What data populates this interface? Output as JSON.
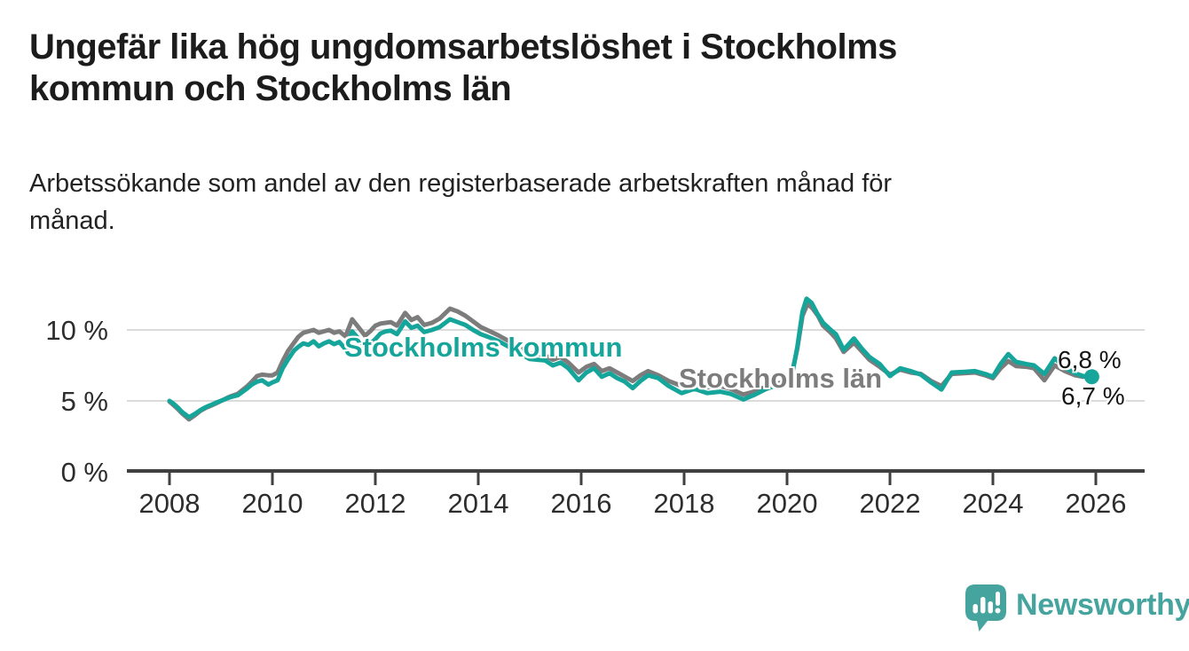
{
  "header": {
    "title_lines": [
      "Ungefär lika hög ungdomsarbetslöshet i Stockholms",
      "kommun och Stockholms län"
    ],
    "subtitle_lines": [
      "Arbetssökande som andel av den registerbaserade arbetskraften månad för",
      "månad."
    ]
  },
  "footer": {
    "brand": "Newsworthy",
    "brand_color": "#45a49d",
    "logo_icon": "speech-bubble-bar-chart-icon"
  },
  "chart_data": {
    "type": "line",
    "title": "Ungefär lika hög ungdomsarbetslöshet i Stockholms kommun och Stockholms län",
    "subtitle": "Arbetssökande som andel av den registerbaserade arbetskraften månad för månad.",
    "xlabel": "",
    "ylabel": "",
    "grid": "horizontal-only",
    "legend_position": "inline-labels",
    "y_axis": {
      "range": [
        0,
        13
      ],
      "ticks": [
        {
          "value": 0,
          "label": "0 %"
        },
        {
          "value": 5,
          "label": "5 %"
        },
        {
          "value": 10,
          "label": "10 %"
        }
      ]
    },
    "x_axis": {
      "range": [
        2007.2,
        2026.9
      ],
      "ticks": [
        {
          "value": 2008,
          "label": "2008"
        },
        {
          "value": 2010,
          "label": "2010"
        },
        {
          "value": 2012,
          "label": "2012"
        },
        {
          "value": 2014,
          "label": "2014"
        },
        {
          "value": 2016,
          "label": "2016"
        },
        {
          "value": 2018,
          "label": "2018"
        },
        {
          "value": 2020,
          "label": "2020"
        },
        {
          "value": 2022,
          "label": "2022"
        },
        {
          "value": 2024,
          "label": "2024"
        },
        {
          "value": 2026,
          "label": "2026"
        }
      ]
    },
    "series": [
      {
        "name": "Stockholms län",
        "color": "#7c7c7c",
        "end_label": "6,8 %",
        "end_value": 6.8,
        "end_dot": false,
        "points": [
          [
            2008.0,
            4.95
          ],
          [
            2008.08,
            4.7
          ],
          [
            2008.17,
            4.4
          ],
          [
            2008.25,
            4.1
          ],
          [
            2008.38,
            3.7
          ],
          [
            2008.5,
            4.0
          ],
          [
            2008.6,
            4.3
          ],
          [
            2008.7,
            4.5
          ],
          [
            2008.83,
            4.7
          ],
          [
            2008.92,
            4.85
          ],
          [
            2009.0,
            5.0
          ],
          [
            2009.17,
            5.3
          ],
          [
            2009.33,
            5.5
          ],
          [
            2009.5,
            6.0
          ],
          [
            2009.6,
            6.35
          ],
          [
            2009.7,
            6.75
          ],
          [
            2009.8,
            6.85
          ],
          [
            2009.92,
            6.8
          ],
          [
            2010.0,
            6.8
          ],
          [
            2010.1,
            7.0
          ],
          [
            2010.2,
            7.8
          ],
          [
            2010.3,
            8.5
          ],
          [
            2010.42,
            9.1
          ],
          [
            2010.5,
            9.5
          ],
          [
            2010.6,
            9.8
          ],
          [
            2010.7,
            9.9
          ],
          [
            2010.8,
            10.0
          ],
          [
            2010.9,
            9.8
          ],
          [
            2011.0,
            9.9
          ],
          [
            2011.1,
            10.0
          ],
          [
            2011.2,
            9.8
          ],
          [
            2011.3,
            9.9
          ],
          [
            2011.42,
            9.55
          ],
          [
            2011.55,
            10.75
          ],
          [
            2011.67,
            10.2
          ],
          [
            2011.8,
            9.6
          ],
          [
            2011.9,
            9.9
          ],
          [
            2012.0,
            10.3
          ],
          [
            2012.1,
            10.45
          ],
          [
            2012.2,
            10.5
          ],
          [
            2012.3,
            10.55
          ],
          [
            2012.42,
            10.3
          ],
          [
            2012.58,
            11.2
          ],
          [
            2012.7,
            10.7
          ],
          [
            2012.82,
            10.9
          ],
          [
            2012.95,
            10.35
          ],
          [
            2013.1,
            10.5
          ],
          [
            2013.25,
            10.8
          ],
          [
            2013.45,
            11.5
          ],
          [
            2013.6,
            11.3
          ],
          [
            2013.75,
            11.0
          ],
          [
            2013.9,
            10.6
          ],
          [
            2014.05,
            10.2
          ],
          [
            2014.2,
            9.95
          ],
          [
            2014.4,
            9.6
          ],
          [
            2014.6,
            9.2
          ],
          [
            2014.8,
            8.75
          ],
          [
            2015.0,
            8.35
          ],
          [
            2015.15,
            8.3
          ],
          [
            2015.3,
            8.2
          ],
          [
            2015.45,
            7.9
          ],
          [
            2015.6,
            8.1
          ],
          [
            2015.75,
            7.7
          ],
          [
            2015.95,
            7.0
          ],
          [
            2016.1,
            7.4
          ],
          [
            2016.25,
            7.6
          ],
          [
            2016.4,
            7.1
          ],
          [
            2016.55,
            7.3
          ],
          [
            2016.7,
            7.0
          ],
          [
            2016.85,
            6.7
          ],
          [
            2017.0,
            6.4
          ],
          [
            2017.15,
            6.8
          ],
          [
            2017.3,
            7.1
          ],
          [
            2017.5,
            6.8
          ],
          [
            2017.7,
            6.4
          ],
          [
            2017.95,
            6.05
          ],
          [
            2018.2,
            6.2
          ],
          [
            2018.45,
            5.95
          ],
          [
            2018.7,
            6.05
          ],
          [
            2018.9,
            5.85
          ],
          [
            2019.15,
            5.45
          ],
          [
            2019.35,
            5.65
          ],
          [
            2019.6,
            6.0
          ],
          [
            2019.8,
            6.2
          ],
          [
            2020.0,
            6.4
          ],
          [
            2020.1,
            7.0
          ],
          [
            2020.2,
            8.7
          ],
          [
            2020.3,
            11.0
          ],
          [
            2020.4,
            11.85
          ],
          [
            2020.5,
            11.5
          ],
          [
            2020.6,
            11.0
          ],
          [
            2020.7,
            10.3
          ],
          [
            2020.85,
            9.8
          ],
          [
            2020.95,
            9.4
          ],
          [
            2021.1,
            8.45
          ],
          [
            2021.3,
            9.1
          ],
          [
            2021.45,
            8.5
          ],
          [
            2021.6,
            7.9
          ],
          [
            2021.8,
            7.4
          ],
          [
            2022.0,
            6.85
          ],
          [
            2022.2,
            7.2
          ],
          [
            2022.4,
            7.0
          ],
          [
            2022.6,
            6.9
          ],
          [
            2022.8,
            6.4
          ],
          [
            2023.0,
            6.05
          ],
          [
            2023.2,
            6.9
          ],
          [
            2023.45,
            6.95
          ],
          [
            2023.65,
            7.0
          ],
          [
            2023.85,
            6.8
          ],
          [
            2024.0,
            6.6
          ],
          [
            2024.15,
            7.3
          ],
          [
            2024.3,
            7.8
          ],
          [
            2024.45,
            7.45
          ],
          [
            2024.65,
            7.4
          ],
          [
            2024.8,
            7.3
          ],
          [
            2025.0,
            6.45
          ],
          [
            2025.2,
            7.5
          ],
          [
            2025.4,
            7.1
          ],
          [
            2025.6,
            6.8
          ],
          [
            2025.75,
            6.7
          ],
          [
            2025.92,
            6.8
          ]
        ]
      },
      {
        "name": "Stockholms kommun",
        "color": "#16a59a",
        "end_label": "6,7 %",
        "end_value": 6.7,
        "end_dot": true,
        "points": [
          [
            2008.0,
            5.0
          ],
          [
            2008.08,
            4.8
          ],
          [
            2008.17,
            4.5
          ],
          [
            2008.25,
            4.2
          ],
          [
            2008.38,
            3.85
          ],
          [
            2008.5,
            4.1
          ],
          [
            2008.6,
            4.35
          ],
          [
            2008.7,
            4.55
          ],
          [
            2008.83,
            4.75
          ],
          [
            2008.92,
            4.9
          ],
          [
            2009.0,
            5.0
          ],
          [
            2009.17,
            5.25
          ],
          [
            2009.33,
            5.4
          ],
          [
            2009.5,
            5.85
          ],
          [
            2009.6,
            6.15
          ],
          [
            2009.7,
            6.35
          ],
          [
            2009.8,
            6.45
          ],
          [
            2009.92,
            6.15
          ],
          [
            2010.0,
            6.3
          ],
          [
            2010.1,
            6.45
          ],
          [
            2010.2,
            7.3
          ],
          [
            2010.3,
            7.9
          ],
          [
            2010.42,
            8.55
          ],
          [
            2010.5,
            8.8
          ],
          [
            2010.6,
            9.05
          ],
          [
            2010.7,
            8.95
          ],
          [
            2010.8,
            9.2
          ],
          [
            2010.9,
            8.85
          ],
          [
            2011.0,
            9.05
          ],
          [
            2011.1,
            9.2
          ],
          [
            2011.2,
            9.0
          ],
          [
            2011.3,
            9.15
          ],
          [
            2011.42,
            8.65
          ],
          [
            2011.55,
            9.9
          ],
          [
            2011.67,
            9.4
          ],
          [
            2011.8,
            8.75
          ],
          [
            2011.9,
            9.0
          ],
          [
            2012.0,
            9.35
          ],
          [
            2012.1,
            9.75
          ],
          [
            2012.2,
            9.9
          ],
          [
            2012.3,
            9.95
          ],
          [
            2012.42,
            9.7
          ],
          [
            2012.58,
            10.6
          ],
          [
            2012.7,
            10.15
          ],
          [
            2012.82,
            10.3
          ],
          [
            2012.95,
            9.85
          ],
          [
            2013.1,
            10.0
          ],
          [
            2013.25,
            10.2
          ],
          [
            2013.45,
            10.75
          ],
          [
            2013.6,
            10.55
          ],
          [
            2013.75,
            10.35
          ],
          [
            2013.9,
            10.0
          ],
          [
            2014.05,
            9.7
          ],
          [
            2014.2,
            9.5
          ],
          [
            2014.4,
            9.2
          ],
          [
            2014.6,
            8.8
          ],
          [
            2014.8,
            8.35
          ],
          [
            2015.0,
            7.95
          ],
          [
            2015.15,
            7.9
          ],
          [
            2015.3,
            7.85
          ],
          [
            2015.45,
            7.5
          ],
          [
            2015.6,
            7.7
          ],
          [
            2015.75,
            7.3
          ],
          [
            2015.95,
            6.45
          ],
          [
            2016.1,
            7.0
          ],
          [
            2016.25,
            7.3
          ],
          [
            2016.4,
            6.7
          ],
          [
            2016.55,
            6.95
          ],
          [
            2016.7,
            6.6
          ],
          [
            2016.85,
            6.35
          ],
          [
            2017.0,
            5.9
          ],
          [
            2017.15,
            6.4
          ],
          [
            2017.3,
            6.8
          ],
          [
            2017.5,
            6.6
          ],
          [
            2017.7,
            6.05
          ],
          [
            2017.95,
            5.55
          ],
          [
            2018.2,
            5.85
          ],
          [
            2018.45,
            5.55
          ],
          [
            2018.7,
            5.65
          ],
          [
            2018.9,
            5.5
          ],
          [
            2019.15,
            5.1
          ],
          [
            2019.35,
            5.4
          ],
          [
            2019.6,
            5.85
          ],
          [
            2019.8,
            6.1
          ],
          [
            2020.0,
            6.3
          ],
          [
            2020.1,
            6.9
          ],
          [
            2020.2,
            8.8
          ],
          [
            2020.3,
            11.3
          ],
          [
            2020.38,
            12.2
          ],
          [
            2020.48,
            11.9
          ],
          [
            2020.58,
            11.2
          ],
          [
            2020.7,
            10.5
          ],
          [
            2020.85,
            10.0
          ],
          [
            2020.95,
            9.7
          ],
          [
            2021.1,
            8.6
          ],
          [
            2021.3,
            9.4
          ],
          [
            2021.45,
            8.7
          ],
          [
            2021.6,
            8.1
          ],
          [
            2021.8,
            7.6
          ],
          [
            2022.0,
            6.75
          ],
          [
            2022.2,
            7.3
          ],
          [
            2022.4,
            7.1
          ],
          [
            2022.6,
            6.85
          ],
          [
            2022.8,
            6.3
          ],
          [
            2023.0,
            5.8
          ],
          [
            2023.2,
            7.0
          ],
          [
            2023.45,
            7.05
          ],
          [
            2023.65,
            7.1
          ],
          [
            2023.85,
            6.9
          ],
          [
            2024.0,
            6.7
          ],
          [
            2024.15,
            7.6
          ],
          [
            2024.3,
            8.3
          ],
          [
            2024.45,
            7.75
          ],
          [
            2024.65,
            7.6
          ],
          [
            2024.8,
            7.5
          ],
          [
            2025.0,
            6.9
          ],
          [
            2025.2,
            8.0
          ],
          [
            2025.4,
            7.35
          ],
          [
            2025.6,
            6.95
          ],
          [
            2025.75,
            6.75
          ],
          [
            2025.92,
            6.7
          ]
        ]
      }
    ]
  },
  "colors": {
    "kommun_line": "#16a59a",
    "lan_line": "#7c7c7c",
    "gridline": "#dbdbdb",
    "axis": "#404040",
    "text": "#1c1c1c"
  }
}
